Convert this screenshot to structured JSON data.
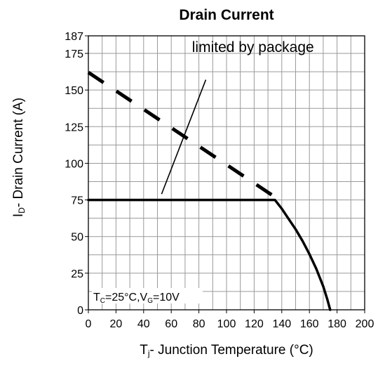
{
  "chart_data": {
    "type": "line",
    "title": "Drain Current",
    "xlabel": {
      "prefix": "T",
      "sub": "j",
      "rest": "- Junction Temperature (°C)"
    },
    "ylabel": {
      "prefix": "I",
      "sub": "D",
      "rest": "- Drain Current (A)"
    },
    "xlim": [
      0,
      200
    ],
    "ylim": [
      0,
      187
    ],
    "grid": true,
    "x_grid_step": 10,
    "y_grid_step": 12.5,
    "x_ticks": [
      0,
      20,
      40,
      60,
      80,
      100,
      120,
      140,
      160,
      180,
      200
    ],
    "x_tick_labels": [
      "0",
      "20",
      "40",
      "60",
      "80",
      "100",
      "120",
      "140",
      "160",
      "180",
      "200"
    ],
    "y_ticks": [
      0,
      25,
      50,
      75,
      100,
      125,
      150,
      175,
      187
    ],
    "y_tick_labels": [
      "0",
      "25",
      "50",
      "75",
      "100",
      "125",
      "150",
      "175",
      "187"
    ],
    "series": [
      {
        "style": "dashed",
        "points": [
          [
            0,
            162
          ],
          [
            135,
            77
          ]
        ]
      },
      {
        "style": "solid-thick",
        "points": [
          [
            0,
            75
          ],
          [
            135,
            75
          ],
          [
            140,
            69
          ],
          [
            145,
            62
          ],
          [
            150,
            55
          ],
          [
            155,
            47
          ],
          [
            160,
            38
          ],
          [
            165,
            28
          ],
          [
            170,
            16
          ],
          [
            173,
            7
          ],
          [
            175,
            0
          ]
        ]
      }
    ],
    "annotations": [
      {
        "id": "limited-by-package",
        "text": "limited by package",
        "at": [
          75,
          176
        ],
        "pointer": [
          [
            53,
            79
          ],
          [
            85,
            157
          ]
        ]
      }
    ],
    "condition_label": {
      "t_prefix": "T",
      "t_sub": "C",
      "t_rest": "=25°C,V",
      "v_sub": "G",
      "v_rest": "=10V"
    },
    "colors": {
      "grid": "#9a9a9a",
      "axis": "#000000",
      "line": "#000000"
    }
  }
}
